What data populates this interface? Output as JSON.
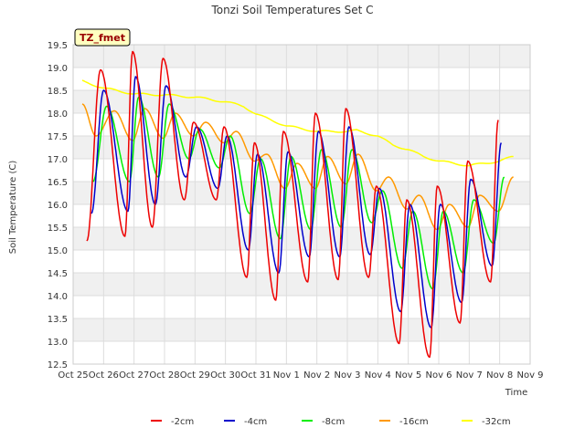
{
  "chart_data": {
    "type": "line",
    "title": "Tonzi Soil Temperatures Set C",
    "xlabel": "Time",
    "ylabel": "Soil Temperature (C)",
    "tag": "TZ_fmet",
    "ylim": [
      12.5,
      19.5
    ],
    "xlim": [
      0,
      15
    ],
    "grid": true,
    "legend_position": "bottom-center",
    "x_tick_labels": [
      "Oct 25",
      "Oct 26",
      "Oct 27",
      "Oct 28",
      "Oct 29",
      "Oct 30",
      "Oct 31",
      "Nov 1",
      "Nov 2",
      "Nov 3",
      "Nov 4",
      "Nov 5",
      "Nov 6",
      "Nov 7",
      "Nov 8",
      "Nov 9"
    ],
    "y_tick_labels": [
      "12.5",
      "13.0",
      "13.5",
      "14.0",
      "14.5",
      "15.0",
      "15.5",
      "16.0",
      "16.5",
      "17.0",
      "17.5",
      "18.0",
      "18.5",
      "19.0",
      "19.5"
    ],
    "series_shape": {
      "-2cm": {
        "mins": [
          [
            0.45,
            15.2
          ],
          [
            1.7,
            15.3
          ],
          [
            2.6,
            15.5
          ],
          [
            3.65,
            16.1
          ],
          [
            4.7,
            16.1
          ],
          [
            5.7,
            14.4
          ],
          [
            6.65,
            13.9
          ],
          [
            7.7,
            14.3
          ],
          [
            8.7,
            14.35
          ],
          [
            9.7,
            14.4
          ],
          [
            10.7,
            12.95
          ],
          [
            11.7,
            12.65
          ],
          [
            12.7,
            13.4
          ],
          [
            13.7,
            14.3
          ]
        ],
        "maxs": [
          [
            0.9,
            18.95
          ],
          [
            1.95,
            19.35
          ],
          [
            2.95,
            19.2
          ],
          [
            3.95,
            17.8
          ],
          [
            4.95,
            17.7
          ],
          [
            5.95,
            17.35
          ],
          [
            6.9,
            17.6
          ],
          [
            7.95,
            18.0
          ],
          [
            8.95,
            18.1
          ],
          [
            9.95,
            16.4
          ],
          [
            10.95,
            16.1
          ],
          [
            11.95,
            16.4
          ],
          [
            12.95,
            16.95
          ],
          [
            13.95,
            17.85
          ]
        ]
      },
      "-4cm": {
        "mins": [
          [
            0.6,
            15.8
          ],
          [
            1.8,
            15.85
          ],
          [
            2.7,
            16.0
          ],
          [
            3.7,
            16.6
          ],
          [
            4.75,
            16.35
          ],
          [
            5.75,
            15.0
          ],
          [
            6.75,
            14.5
          ],
          [
            7.75,
            14.85
          ],
          [
            8.75,
            14.85
          ],
          [
            9.75,
            14.9
          ],
          [
            10.75,
            13.65
          ],
          [
            11.75,
            13.3
          ],
          [
            12.75,
            13.85
          ],
          [
            13.75,
            14.65
          ]
        ],
        "maxs": [
          [
            1.0,
            18.5
          ],
          [
            2.05,
            18.8
          ],
          [
            3.05,
            18.6
          ],
          [
            4.05,
            17.7
          ],
          [
            5.05,
            17.5
          ],
          [
            6.05,
            17.1
          ],
          [
            7.05,
            17.15
          ],
          [
            8.05,
            17.6
          ],
          [
            9.05,
            17.7
          ],
          [
            10.05,
            16.35
          ],
          [
            11.05,
            16.0
          ],
          [
            12.05,
            16.0
          ],
          [
            13.05,
            16.55
          ],
          [
            14.05,
            17.35
          ]
        ]
      },
      "-8cm": {
        "mins": [
          [
            0.65,
            16.5
          ],
          [
            1.85,
            16.5
          ],
          [
            2.8,
            16.6
          ],
          [
            3.8,
            17.0
          ],
          [
            4.8,
            16.8
          ],
          [
            5.8,
            15.8
          ],
          [
            6.8,
            15.25
          ],
          [
            7.8,
            15.45
          ],
          [
            8.8,
            15.5
          ],
          [
            9.8,
            15.6
          ],
          [
            10.8,
            14.6
          ],
          [
            11.8,
            14.15
          ],
          [
            12.8,
            14.5
          ],
          [
            13.8,
            15.15
          ]
        ],
        "maxs": [
          [
            1.1,
            18.15
          ],
          [
            2.15,
            18.35
          ],
          [
            3.15,
            18.2
          ],
          [
            4.15,
            17.65
          ],
          [
            5.15,
            17.5
          ],
          [
            6.15,
            17.0
          ],
          [
            7.15,
            17.05
          ],
          [
            8.15,
            17.2
          ],
          [
            9.15,
            17.2
          ],
          [
            10.15,
            16.3
          ],
          [
            11.15,
            15.85
          ],
          [
            12.15,
            15.85
          ],
          [
            13.15,
            16.1
          ],
          [
            14.15,
            16.6
          ]
        ]
      },
      "-16cm": {
        "mins": [
          [
            0.75,
            17.5
          ],
          [
            1.95,
            17.4
          ],
          [
            2.95,
            17.45
          ],
          [
            3.95,
            17.5
          ],
          [
            4.95,
            17.35
          ],
          [
            5.95,
            16.95
          ],
          [
            6.95,
            16.35
          ],
          [
            7.95,
            16.35
          ],
          [
            8.95,
            16.45
          ],
          [
            9.95,
            16.3
          ],
          [
            10.95,
            15.9
          ],
          [
            11.95,
            15.45
          ],
          [
            12.95,
            15.5
          ],
          [
            13.95,
            15.85
          ]
        ],
        "maxs": [
          [
            0.3,
            18.2
          ],
          [
            1.35,
            18.05
          ],
          [
            2.35,
            18.1
          ],
          [
            3.35,
            18.0
          ],
          [
            4.35,
            17.8
          ],
          [
            5.35,
            17.6
          ],
          [
            6.35,
            17.1
          ],
          [
            7.35,
            16.9
          ],
          [
            8.35,
            17.05
          ],
          [
            9.35,
            17.1
          ],
          [
            10.35,
            16.6
          ],
          [
            11.35,
            16.2
          ],
          [
            12.35,
            16.0
          ],
          [
            13.35,
            16.2
          ],
          [
            14.45,
            16.6
          ]
        ]
      },
      "-32cm": {
        "anchors": [
          [
            0.3,
            18.7
          ],
          [
            1.0,
            18.55
          ],
          [
            2.0,
            18.42
          ],
          [
            3.0,
            18.4
          ],
          [
            4.0,
            18.35
          ],
          [
            5.0,
            18.25
          ],
          [
            5.6,
            18.15
          ],
          [
            6.0,
            17.98
          ],
          [
            6.5,
            17.85
          ],
          [
            7.0,
            17.72
          ],
          [
            8.0,
            17.6
          ],
          [
            9.0,
            17.6
          ],
          [
            9.3,
            17.62
          ],
          [
            10.0,
            17.5
          ],
          [
            10.5,
            17.3
          ],
          [
            11.0,
            17.2
          ],
          [
            11.5,
            17.05
          ],
          [
            12.0,
            16.95
          ],
          [
            12.5,
            16.9
          ],
          [
            13.0,
            16.85
          ],
          [
            13.5,
            16.9
          ],
          [
            14.0,
            16.95
          ],
          [
            14.45,
            17.05
          ]
        ]
      }
    },
    "series": [
      {
        "name": "-2cm",
        "color": "#ee0000"
      },
      {
        "name": "-4cm",
        "color": "#0000cc"
      },
      {
        "name": "-8cm",
        "color": "#00ee00"
      },
      {
        "name": "-16cm",
        "color": "#ff9900"
      },
      {
        "name": "-32cm",
        "color": "#ffff00"
      }
    ]
  }
}
